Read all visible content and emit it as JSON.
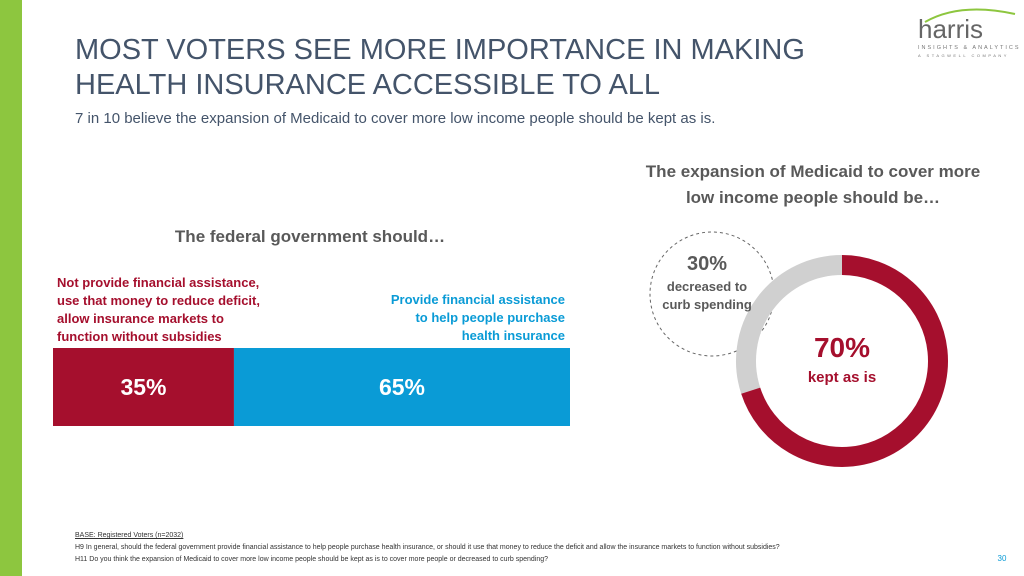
{
  "title": "MOST VOTERS SEE MORE IMPORTANCE IN MAKING HEALTH INSURANCE ACCESSIBLE TO ALL",
  "subtitle": "7 in 10 believe the expansion of Medicaid to cover more low income people should be kept as is.",
  "logo": {
    "name": "harris",
    "tagline": "INSIGHTS & ANALYTICS",
    "parent": "A STAGWELL COMPANY"
  },
  "footnotes": [
    "BASE: Registered Voters (n=2032)",
    "H9 In general, should the federal government provide financial assistance to help people purchase health insurance, or should it use that money to reduce the deficit and allow the insurance markets to function without subsidies?",
    "H11 Do you think the expansion of Medicaid to cover more low income people should be kept as is to cover more people or decreased to curb spending?"
  ],
  "page_number": "30",
  "chart_data": [
    {
      "type": "stacked-bar",
      "title": "The federal government should…",
      "series": [
        {
          "name": "Not provide financial assistance, use that money to reduce deficit, allow insurance markets to function without subsidies",
          "color": "#a50f2d",
          "values": [
            35
          ],
          "value_labels": [
            "35%"
          ]
        },
        {
          "name": "Provide financial assistance to help people purchase health insurance",
          "color": "#0a9bd6",
          "values": [
            65
          ],
          "value_labels": [
            "65%"
          ]
        }
      ]
    },
    {
      "type": "donut",
      "title": "The expansion of Medicaid to cover more low income people should be…",
      "categories": [
        "decreased to curb spending",
        "kept as is"
      ],
      "values": [
        30,
        70
      ],
      "value_labels": [
        "30%",
        "70%"
      ],
      "colors": [
        "#d0d0d0",
        "#a50f2d"
      ]
    }
  ]
}
